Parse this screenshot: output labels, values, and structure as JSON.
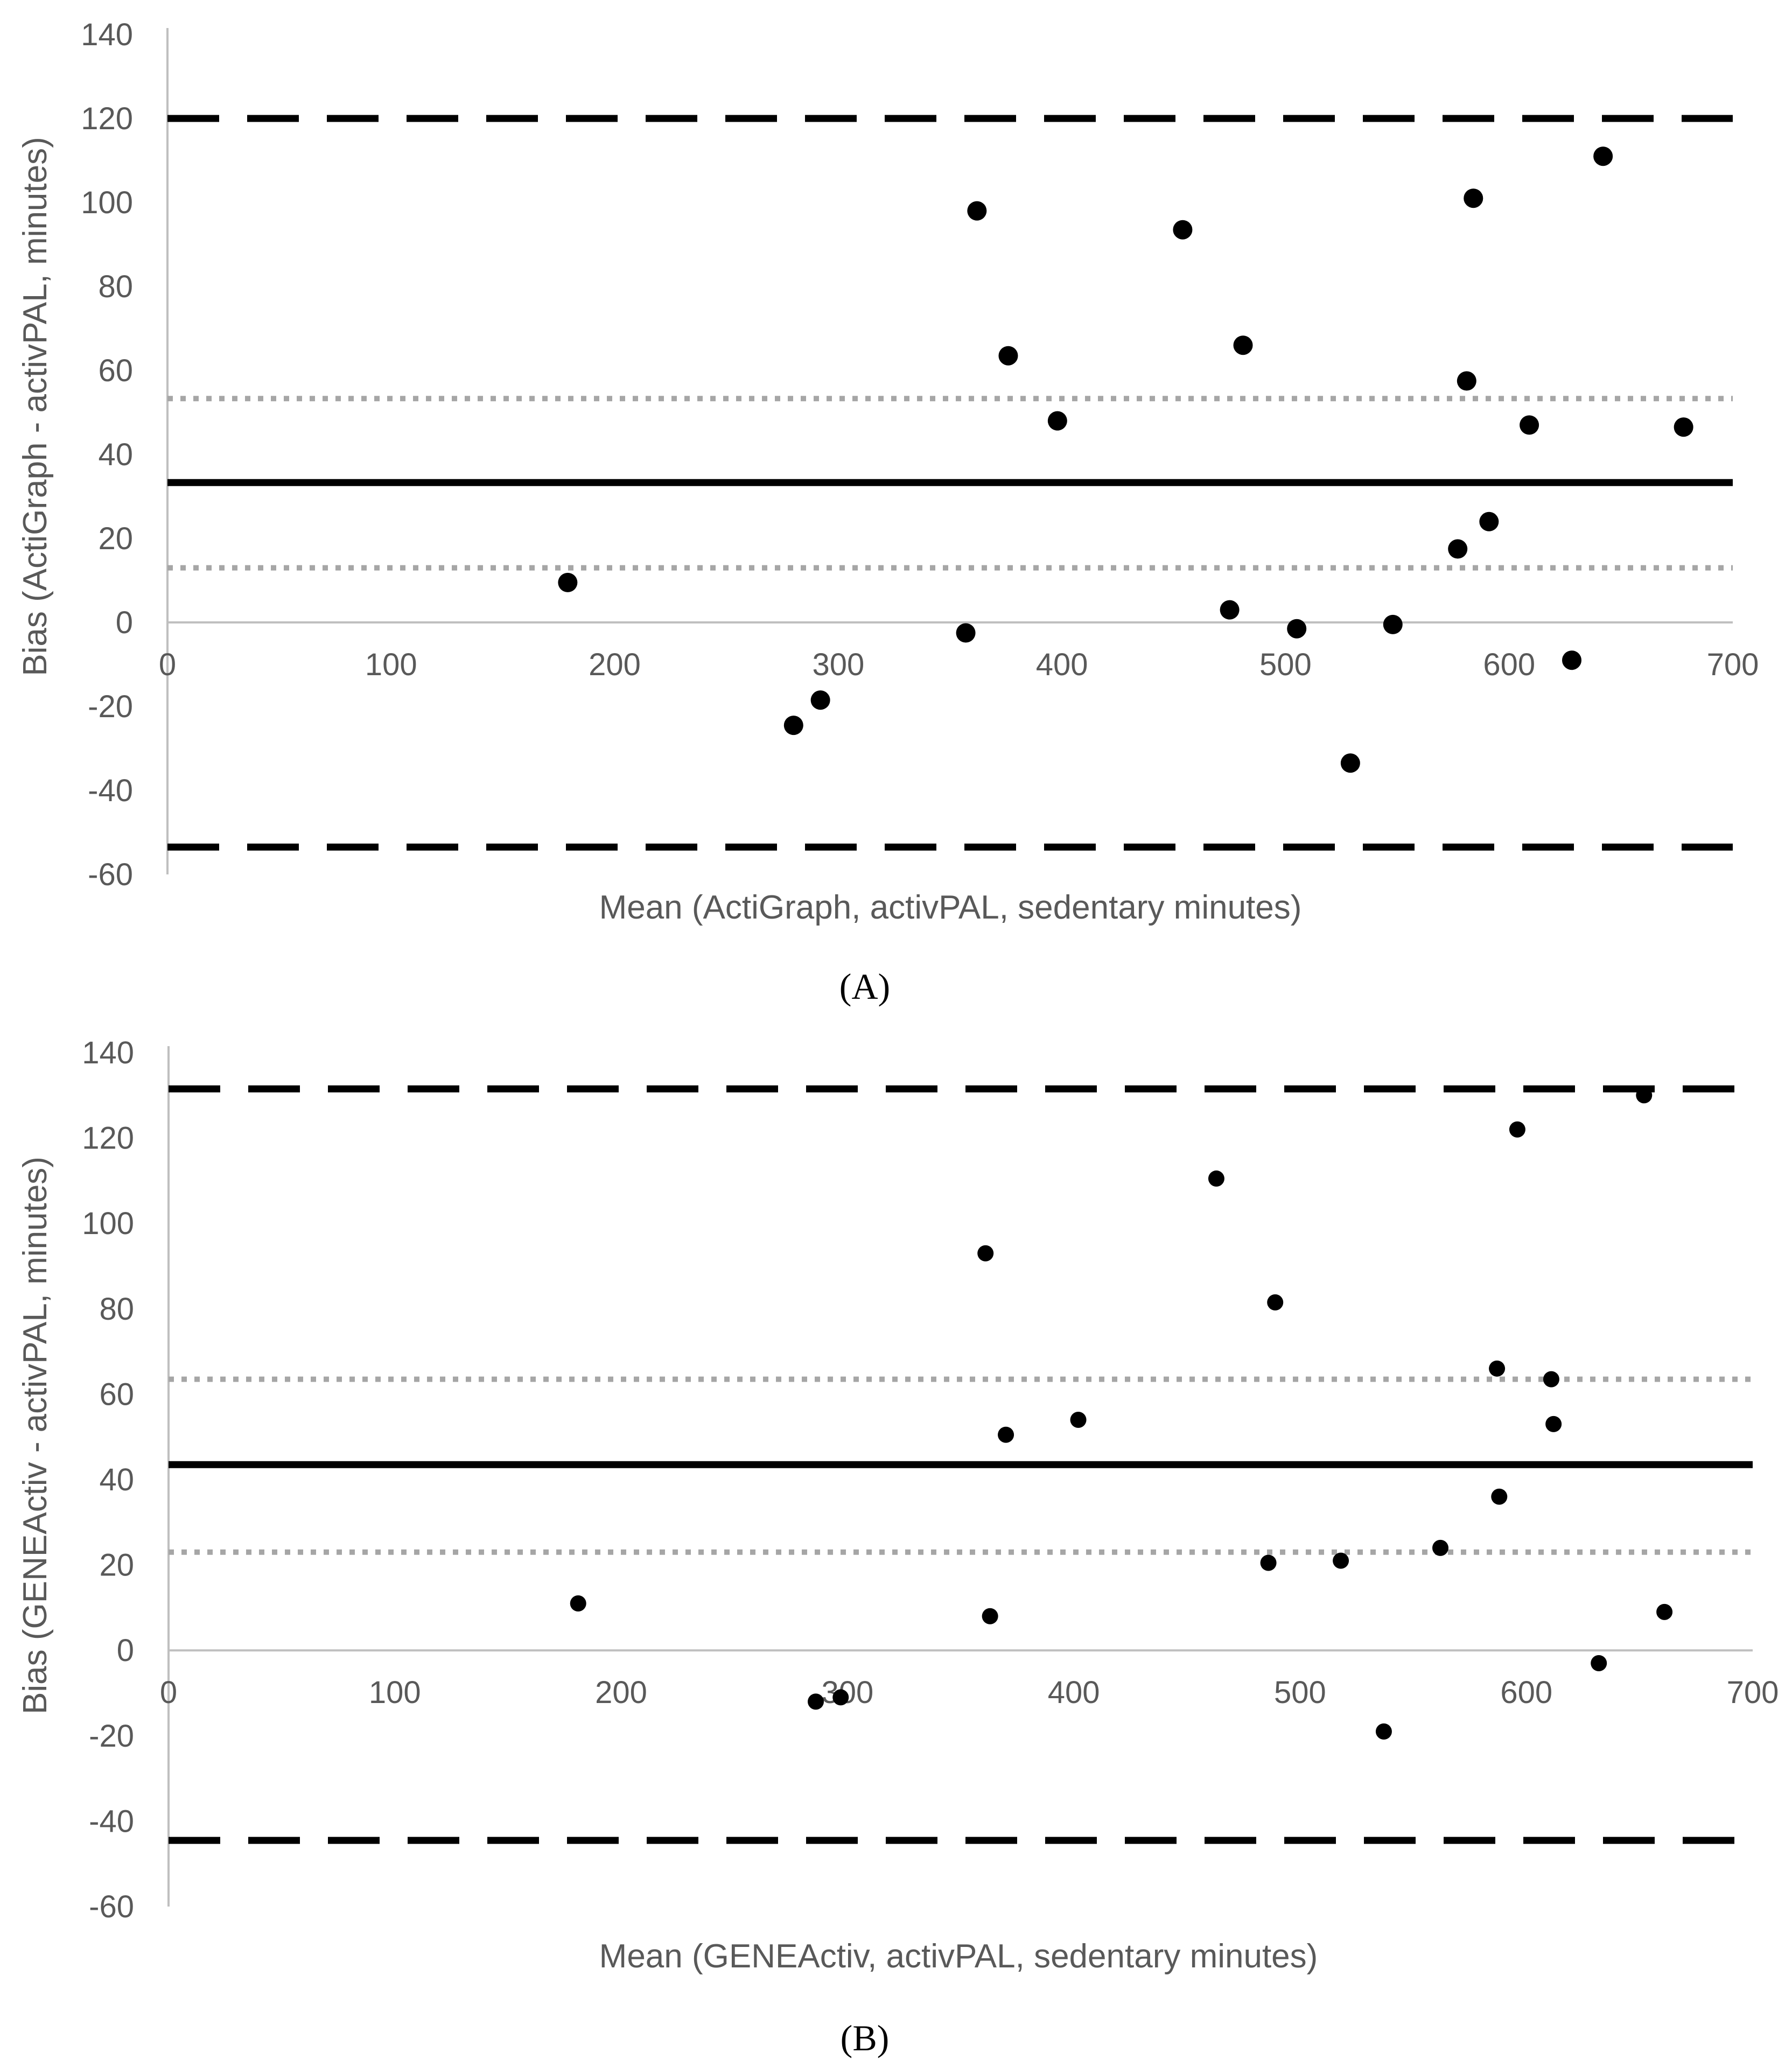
{
  "chart_data": [
    {
      "type": "scatter",
      "panel_label": "(A)",
      "xlabel": "Mean (ActiGraph, activPAL, sedentary minutes)",
      "ylabel": "Bias (ActiGraph - activPAL, minutes)",
      "xlim": [
        0,
        700
      ],
      "ylim": [
        -60,
        140
      ],
      "xticks": [
        "0",
        "100",
        "200",
        "300",
        "400",
        "500",
        "600",
        "700"
      ],
      "yticks": [
        "140",
        "120",
        "100",
        "80",
        "60",
        "40",
        "20",
        "0",
        "-20",
        "-40",
        "-60"
      ],
      "grid": false,
      "legend": "none",
      "reference_lines": {
        "mean_bias": 33.3,
        "upper_loa": 120,
        "lower_loa": -53.5,
        "upper_ci": 53.3,
        "lower_ci": 13
      },
      "points": [
        {
          "x": 179,
          "y": 9.5
        },
        {
          "x": 280,
          "y": -24.5
        },
        {
          "x": 292,
          "y": -18.5
        },
        {
          "x": 357,
          "y": -2.5
        },
        {
          "x": 362,
          "y": 98
        },
        {
          "x": 376,
          "y": 63.5
        },
        {
          "x": 398,
          "y": 48
        },
        {
          "x": 454,
          "y": 93.5
        },
        {
          "x": 475,
          "y": 3
        },
        {
          "x": 481,
          "y": 66
        },
        {
          "x": 505,
          "y": -1.5
        },
        {
          "x": 529,
          "y": -33.5
        },
        {
          "x": 548,
          "y": -0.5
        },
        {
          "x": 577,
          "y": 17.5
        },
        {
          "x": 581,
          "y": 57.5
        },
        {
          "x": 584,
          "y": 101
        },
        {
          "x": 591,
          "y": 24
        },
        {
          "x": 609,
          "y": 47
        },
        {
          "x": 628,
          "y": -9
        },
        {
          "x": 642,
          "y": 111
        },
        {
          "x": 678,
          "y": 46.5
        }
      ]
    },
    {
      "type": "scatter",
      "panel_label": "(B)",
      "xlabel": "Mean (GENEActiv, activPAL, sedentary minutes)",
      "ylabel": "Bias (GENEActiv - activPAL, minutes)",
      "xlim": [
        0,
        700
      ],
      "ylim": [
        -60,
        140
      ],
      "xticks": [
        "0",
        "100",
        "200",
        "300",
        "400",
        "500",
        "600",
        "700"
      ],
      "yticks": [
        "140",
        "120",
        "100",
        "80",
        "60",
        "40",
        "20",
        "0",
        "-20",
        "-40",
        "-60"
      ],
      "grid": false,
      "legend": "none",
      "reference_lines": {
        "mean_bias": 43.5,
        "upper_loa": 131.5,
        "lower_loa": -44.5,
        "upper_ci": 63.5,
        "lower_ci": 23
      },
      "points": [
        {
          "x": 181,
          "y": 11
        },
        {
          "x": 286,
          "y": -12
        },
        {
          "x": 297,
          "y": -11
        },
        {
          "x": 361,
          "y": 93
        },
        {
          "x": 363,
          "y": 8
        },
        {
          "x": 370,
          "y": 50.5
        },
        {
          "x": 402,
          "y": 54
        },
        {
          "x": 463,
          "y": 110.5
        },
        {
          "x": 486,
          "y": 20.5
        },
        {
          "x": 489,
          "y": 81.5
        },
        {
          "x": 518,
          "y": 21
        },
        {
          "x": 537,
          "y": -19
        },
        {
          "x": 562,
          "y": 24
        },
        {
          "x": 587,
          "y": 66
        },
        {
          "x": 588,
          "y": 36
        },
        {
          "x": 596,
          "y": 122
        },
        {
          "x": 611,
          "y": 63.5
        },
        {
          "x": 612,
          "y": 53
        },
        {
          "x": 632,
          "y": -3
        },
        {
          "x": 652,
          "y": 130
        },
        {
          "x": 661,
          "y": 9
        }
      ]
    }
  ]
}
